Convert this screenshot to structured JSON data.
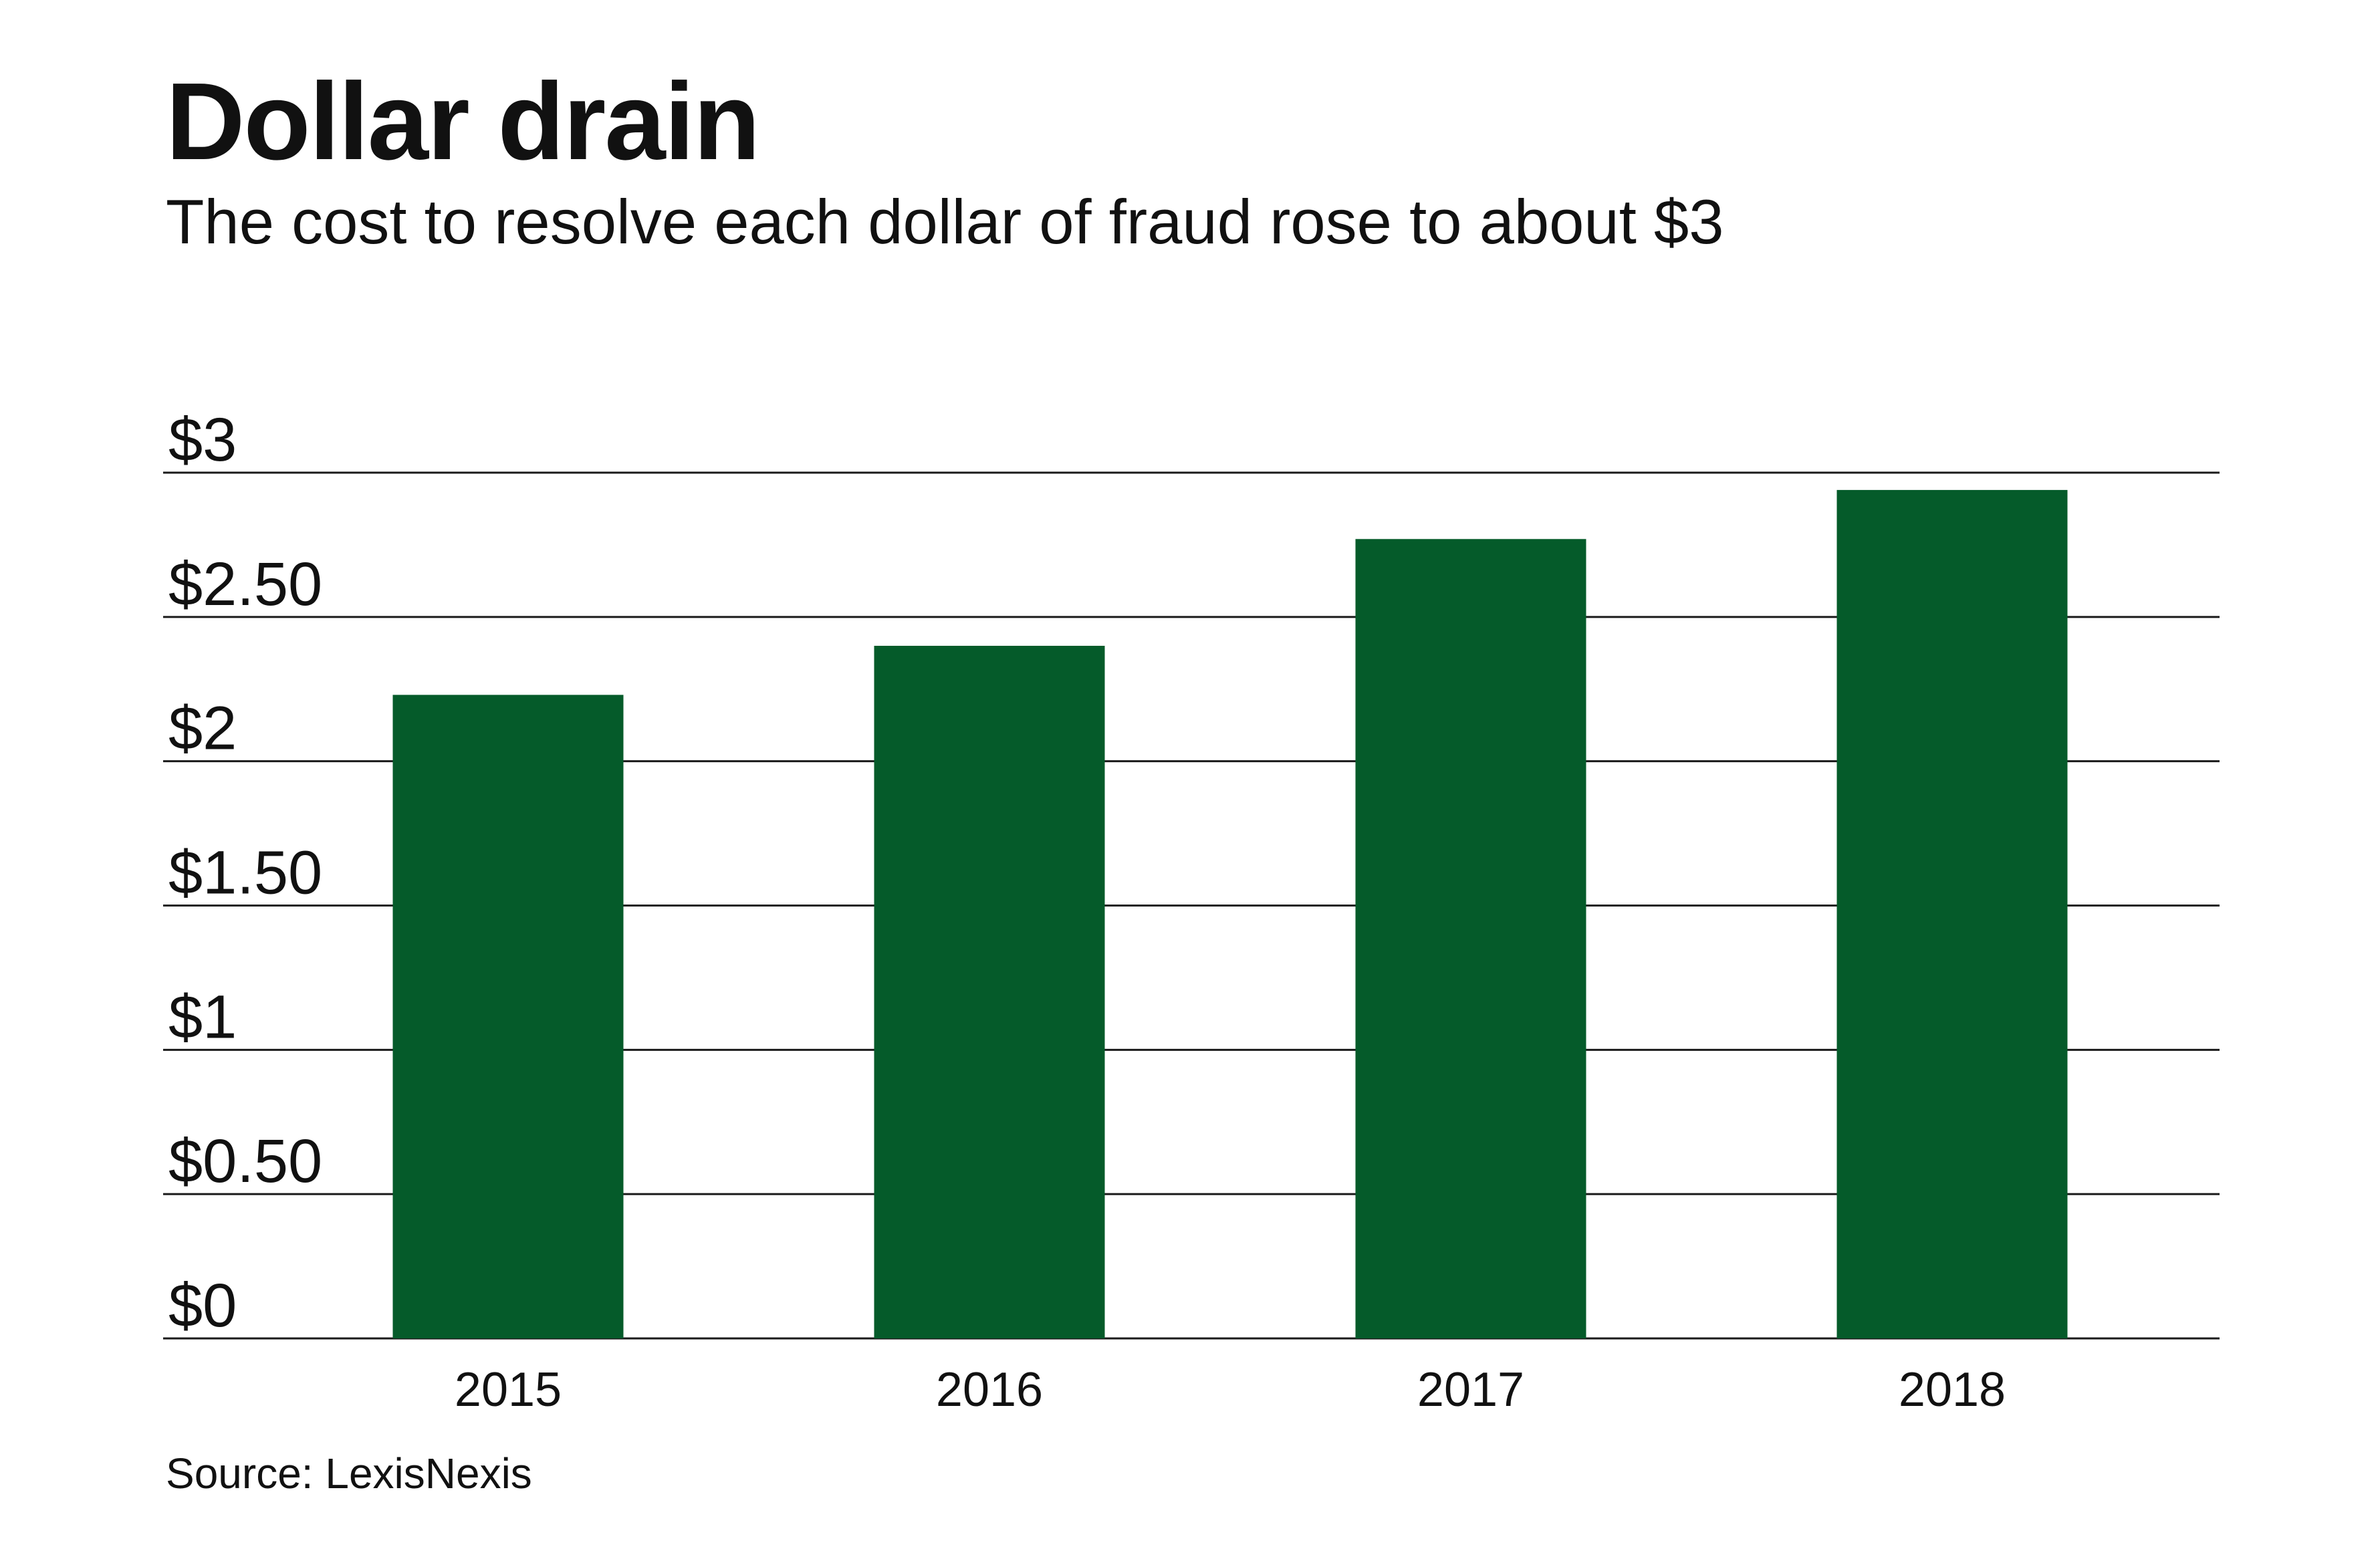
{
  "chart_data": {
    "type": "bar",
    "title": "Dollar drain",
    "subtitle": "The cost to resolve each dollar of fraud rose to about $3",
    "source": "Source: LexisNexis",
    "categories": [
      "2015",
      "2016",
      "2017",
      "2018"
    ],
    "values": [
      2.23,
      2.4,
      2.77,
      2.94
    ],
    "ylim": [
      0,
      3
    ],
    "yticks": [
      0,
      0.5,
      1,
      1.5,
      2,
      2.5,
      3
    ],
    "ytick_labels": [
      "$0",
      "$0.50",
      "$1",
      "$1.50",
      "$2",
      "$2.50",
      "$3"
    ],
    "xlabel": "",
    "ylabel": "",
    "grid": true,
    "legend": "none",
    "bar_color": "#055b2a",
    "grid_color": "#1a1a1a"
  }
}
